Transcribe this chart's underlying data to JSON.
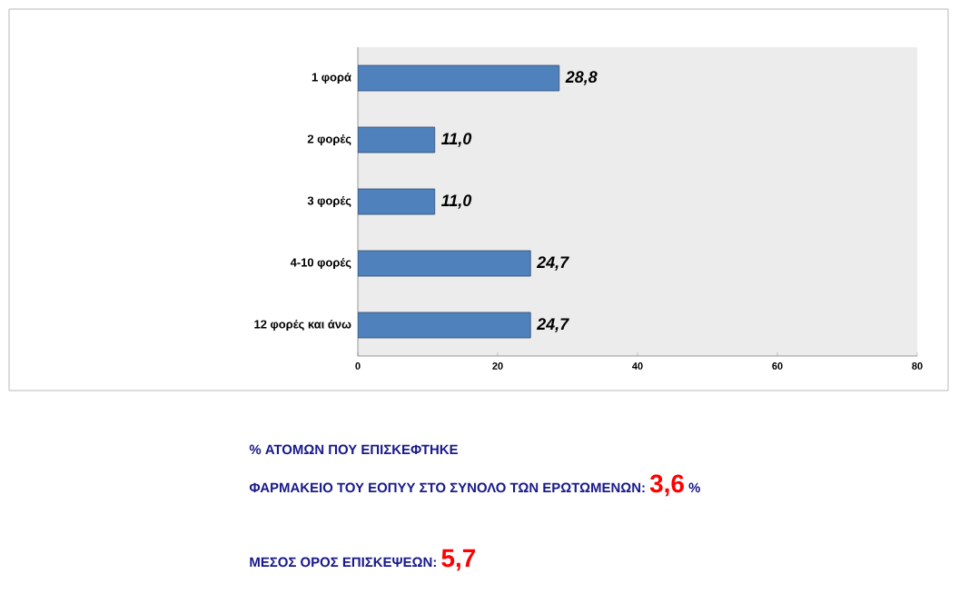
{
  "chart_data": {
    "type": "bar",
    "orientation": "horizontal",
    "categories": [
      "1 φορά",
      "2 φορές",
      "3 φορές",
      "4-10 φορές",
      "12 φορές και άνω"
    ],
    "values": [
      28.8,
      11.0,
      11.0,
      24.7,
      24.7
    ],
    "value_labels": [
      "28,8",
      "11,0",
      "11,0",
      "24,7",
      "24,7"
    ],
    "color": "#4f81bd",
    "xlim": [
      0,
      80
    ],
    "xticks": [
      0,
      20,
      40,
      60,
      80
    ],
    "grid": false,
    "annotations": [
      "% ΑΤΟΜΩΝ ΠΟΥ ΕΠΙΣΚΕΦΤΗΚΕ",
      "ΦΑΡΜΑΚΕΙΟ ΤΟΥ ΕΟΠΥΥ ΣΤΟ ΣΥΝΟΛΟ ΤΩΝ ΕΡΩΤΩΜΕΝΩΝ:",
      "3,6",
      "%",
      "ΜΕΣΟΣ ΟΡΟΣ ΕΠΙΣΚΕΨΕΩΝ:",
      "5,7"
    ]
  }
}
